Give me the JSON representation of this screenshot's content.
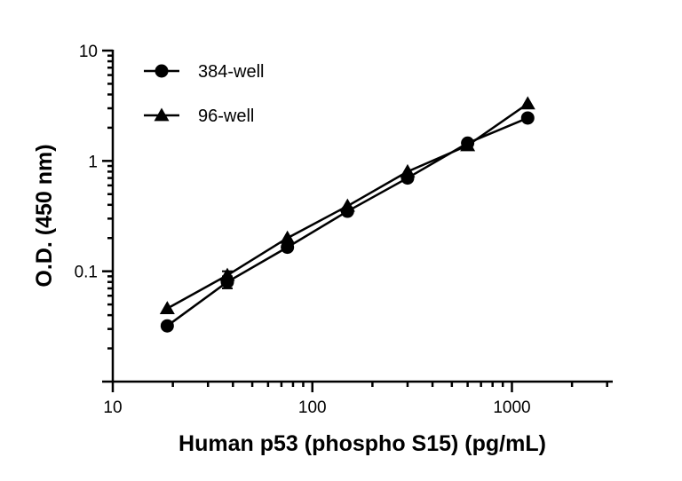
{
  "chart_data": {
    "type": "line",
    "title": "",
    "xlabel": "Human p53 (phospho S15) (pg/mL)",
    "ylabel": "O.D. (450 nm)",
    "x_scale": "log",
    "y_scale": "log",
    "xlim": [
      10,
      3200
    ],
    "ylim": [
      0.01,
      10
    ],
    "x_ticks": [
      {
        "value": 10,
        "label": "10"
      },
      {
        "value": 100,
        "label": "100"
      },
      {
        "value": 1000,
        "label": "1000"
      }
    ],
    "y_ticks": [
      {
        "value": 0.1,
        "label": "0.1"
      },
      {
        "value": 1,
        "label": "1"
      },
      {
        "value": 10,
        "label": "10"
      }
    ],
    "grid": false,
    "legend_position": "top-left",
    "series": [
      {
        "name": "384-well",
        "marker": "circle",
        "color": "#000000",
        "x": [
          18.75,
          37.5,
          75,
          150,
          300,
          600,
          1200
        ],
        "y": [
          0.032,
          0.08,
          0.165,
          0.35,
          0.7,
          1.45,
          2.45
        ],
        "error": [
          0,
          0.01,
          0,
          0,
          0,
          0,
          0
        ]
      },
      {
        "name": "96-well",
        "marker": "triangle",
        "color": "#000000",
        "x": [
          18.75,
          37.5,
          75,
          150,
          300,
          600,
          1200
        ],
        "y": [
          0.046,
          0.092,
          0.2,
          0.39,
          0.8,
          1.38,
          3.3
        ],
        "error": [
          0,
          0.008,
          0,
          0,
          0,
          0,
          0
        ]
      }
    ]
  }
}
